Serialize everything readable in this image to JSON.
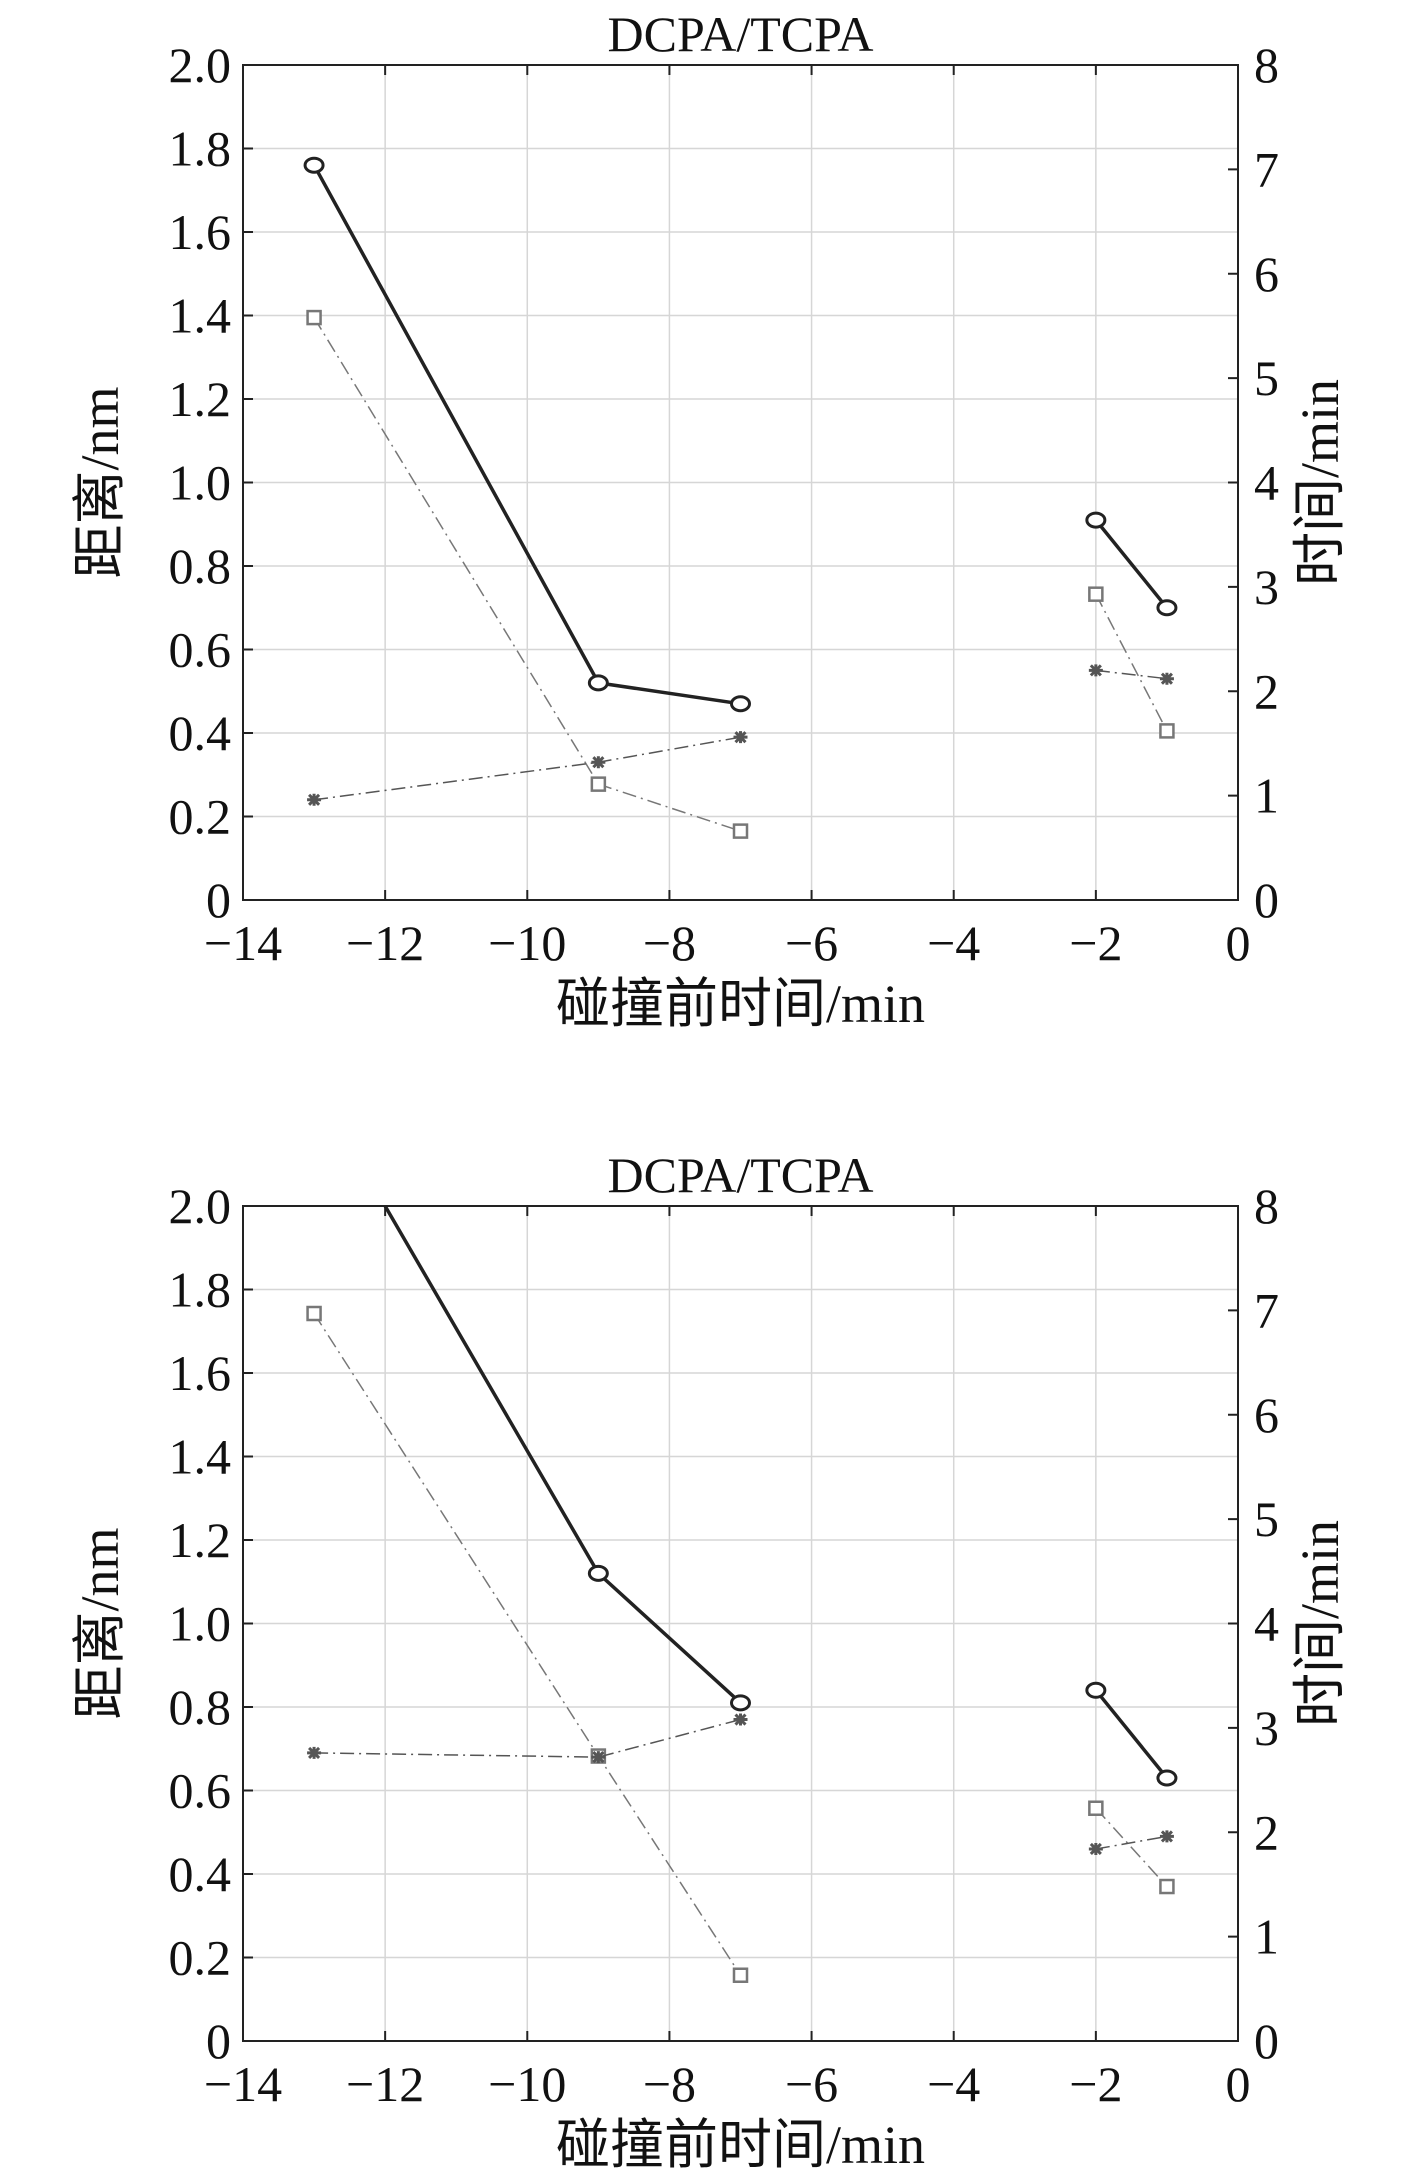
{
  "chart_data": [
    {
      "type": "line",
      "title": "DCPA/TCPA",
      "xlabel": "碰撞前时间/min",
      "ylabel_left": "距离/nm",
      "ylabel_right": "时间/min",
      "xlim": [
        -14,
        0
      ],
      "ylim_left": [
        0,
        2.0
      ],
      "ylim_right": [
        0,
        8
      ],
      "x_ticks": [
        "−14",
        "−12",
        "−10",
        "−8",
        "−6",
        "−4",
        "−2",
        "0"
      ],
      "y_left_ticks": [
        "0",
        "0.2",
        "0.4",
        "0.6",
        "0.8",
        "1.0",
        "1.2",
        "1.4",
        "1.6",
        "1.8",
        "2.0"
      ],
      "y_right_ticks": [
        "0",
        "1",
        "2",
        "3",
        "4",
        "5",
        "6",
        "7",
        "8"
      ],
      "grid": true,
      "series": [
        {
          "axis": "left",
          "style": "solid",
          "marker": "circle",
          "color": "#222222",
          "segments": [
            {
              "x": [
                -13,
                -9,
                -7
              ],
              "y": [
                1.76,
                0.52,
                0.47
              ]
            },
            {
              "x": [
                -2,
                -1
              ],
              "y": [
                0.91,
                0.7
              ]
            }
          ]
        },
        {
          "axis": "right",
          "style": "dashdot",
          "marker": "square",
          "color": "#777777",
          "segments": [
            {
              "x": [
                -13,
                -9,
                -7
              ],
              "y": [
                5.58,
                1.11,
                0.66
              ]
            },
            {
              "x": [
                -2,
                -1
              ],
              "y": [
                2.93,
                1.62
              ]
            }
          ]
        },
        {
          "axis": "left",
          "style": "dashdot",
          "marker": "star",
          "color": "#555555",
          "segments": [
            {
              "x": [
                -13,
                -9,
                -7
              ],
              "y": [
                0.24,
                0.33,
                0.39
              ]
            },
            {
              "x": [
                -2,
                -1
              ],
              "y": [
                0.55,
                0.53
              ]
            }
          ]
        }
      ]
    },
    {
      "type": "line",
      "title": "DCPA/TCPA",
      "xlabel": "碰撞前时间/min",
      "ylabel_left": "距离/nm",
      "ylabel_right": "时间/min",
      "xlim": [
        -14,
        0
      ],
      "ylim_left": [
        0,
        2.0
      ],
      "ylim_right": [
        0,
        8
      ],
      "x_ticks": [
        "−14",
        "−12",
        "−10",
        "−8",
        "−6",
        "−4",
        "−2",
        "0"
      ],
      "y_left_ticks": [
        "0",
        "0.2",
        "0.4",
        "0.6",
        "0.8",
        "1.0",
        "1.2",
        "1.4",
        "1.6",
        "1.8",
        "2.0"
      ],
      "y_right_ticks": [
        "0",
        "1",
        "2",
        "3",
        "4",
        "5",
        "6",
        "7",
        "8"
      ],
      "grid": true,
      "series": [
        {
          "axis": "left",
          "style": "solid",
          "marker": "circle",
          "color": "#222222",
          "segments": [
            {
              "x": [
                -12,
                -9,
                -7
              ],
              "y": [
                2.0,
                1.12,
                0.81
              ],
              "markers_from": 1
            },
            {
              "x": [
                -2,
                -1
              ],
              "y": [
                0.84,
                0.63
              ]
            }
          ]
        },
        {
          "axis": "right",
          "style": "dashdot",
          "marker": "square",
          "color": "#777777",
          "segments": [
            {
              "x": [
                -13,
                -9,
                -7
              ],
              "y": [
                6.97,
                2.73,
                0.63
              ]
            },
            {
              "x": [
                -2,
                -1
              ],
              "y": [
                2.23,
                1.48
              ]
            }
          ]
        },
        {
          "axis": "left",
          "style": "dashdot",
          "marker": "star",
          "color": "#555555",
          "segments": [
            {
              "x": [
                -13,
                -9,
                -7
              ],
              "y": [
                0.69,
                0.68,
                0.77
              ]
            },
            {
              "x": [
                -2,
                -1
              ],
              "y": [
                0.46,
                0.49
              ]
            }
          ]
        }
      ]
    }
  ]
}
